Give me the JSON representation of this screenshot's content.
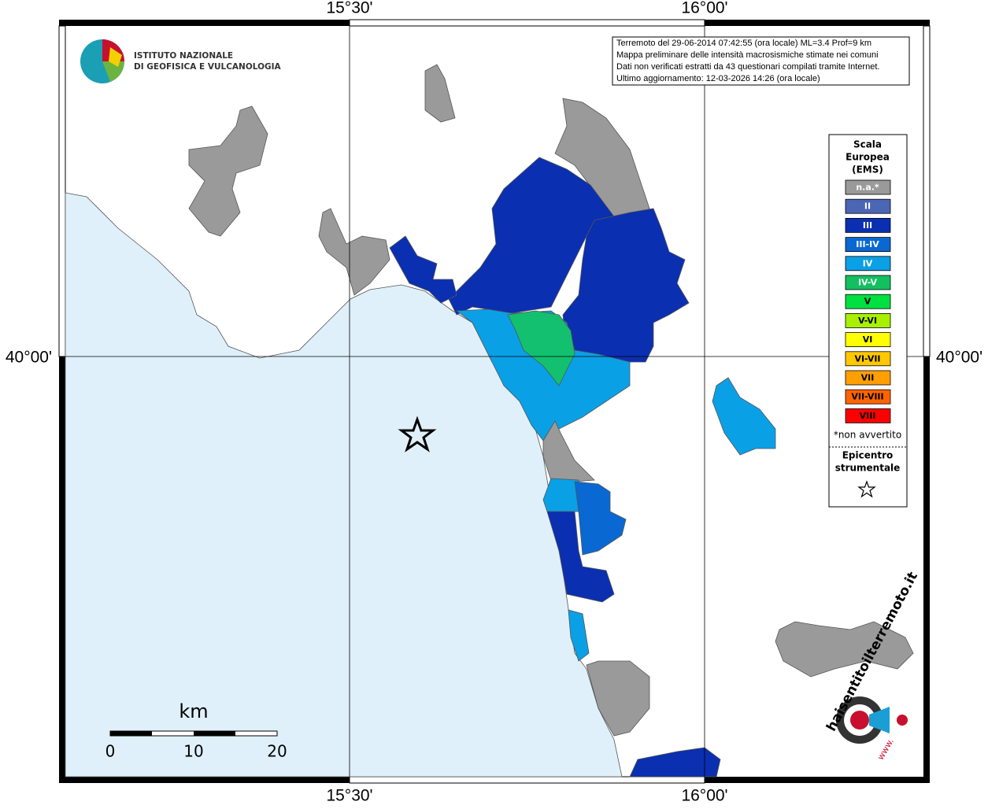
{
  "frame": {
    "lon_labels": [
      "15°30'",
      "16°00'"
    ],
    "lat_labels": [
      "40°00'"
    ]
  },
  "institute": {
    "line1": "ISTITUTO NAZIONALE",
    "line2": "DI GEOFISICA E VULCANOLOGIA"
  },
  "info": [
    "Terremoto del 29-06-2014 07:42:55 (ora locale) ML=3.4 Prof=9 km",
    "Mappa preliminare delle intensità macrosismiche stimate nei comuni",
    "Dati non verificati estratti da 43 questionari compilati tramite Internet.",
    "Ultimo aggiornamento: 12-03-2026 14:26 (ora locale)"
  ],
  "legend": {
    "title": [
      "Scala",
      "Europea",
      "(EMS)"
    ],
    "items": [
      {
        "label": "n.a.*",
        "color": "#9a9a9a"
      },
      {
        "label": "II",
        "color": "#4a66b4"
      },
      {
        "label": "III",
        "color": "#0a2fb0"
      },
      {
        "label": "III-IV",
        "color": "#0a68d2"
      },
      {
        "label": "IV",
        "color": "#0aa0e6"
      },
      {
        "label": "IV-V",
        "color": "#12c060"
      },
      {
        "label": "V",
        "color": "#00e040"
      },
      {
        "label": "V-VI",
        "color": "#a8f000"
      },
      {
        "label": "VI",
        "color": "#ffff00"
      },
      {
        "label": "VI-VII",
        "color": "#ffc800"
      },
      {
        "label": "VII",
        "color": "#ffa000"
      },
      {
        "label": "VII-VIII",
        "color": "#ff6400"
      },
      {
        "label": "VIII",
        "color": "#ff0000"
      }
    ],
    "note": "*non avvertito",
    "epicenter": [
      "Epicentro",
      "strumentale"
    ]
  },
  "scale": {
    "unit": "km",
    "ticks": [
      "0",
      "10",
      "20"
    ]
  },
  "site_logo": {
    "text": "haisentitoilterremoto.it",
    "prefix": "www."
  }
}
